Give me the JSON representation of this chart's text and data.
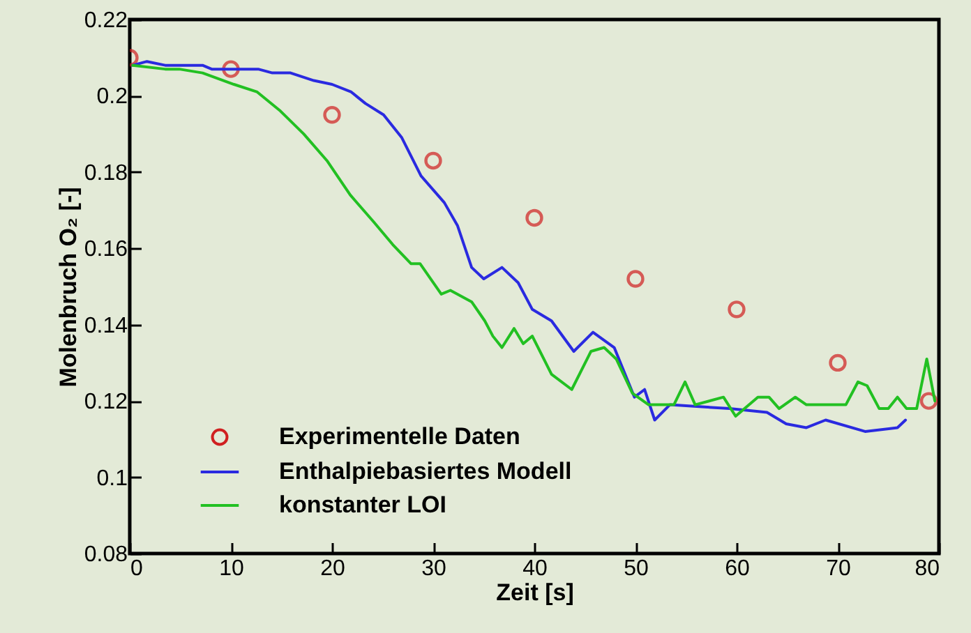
{
  "chart_data": {
    "type": "line",
    "xlabel": "Zeit [s]",
    "ylabel": "Molenbruch O₂ [-]",
    "xlim": [
      0,
      80
    ],
    "xticks": [
      0,
      10,
      20,
      30,
      40,
      50,
      60,
      70,
      80
    ],
    "ylim": [
      0.08,
      0.22
    ],
    "yticks": [
      0.08,
      0.1,
      0.12,
      0.14,
      0.16,
      0.18,
      0.2,
      0.22
    ],
    "grid": false,
    "legend": "bottom left",
    "series": [
      {
        "name": "Experimentelle Daten",
        "type": "scatter",
        "marker": "circle",
        "color": "#d02020",
        "x": [
          0,
          10,
          20,
          30,
          40,
          50,
          60,
          70,
          79
        ],
        "values": [
          0.21,
          0.207,
          0.195,
          0.183,
          0.168,
          0.152,
          0.144,
          0.13,
          0.12
        ]
      },
      {
        "name": "Enthalpiebasiertes Modell",
        "color": "#2a2ae0",
        "x": [
          0.3,
          1.7,
          3.5,
          7.2,
          8.1,
          12.7,
          14.1,
          15.9,
          18.2,
          20.0,
          21.9,
          23.3,
          25.1,
          26.9,
          28.8,
          31.1,
          32.4,
          33.8,
          35.0,
          36.8,
          38.4,
          39.8,
          41.7,
          43.9,
          45.8,
          47.9,
          49.9,
          50.9,
          51.9,
          53.4,
          59.3,
          63.0,
          64.9,
          66.9,
          68.8,
          72.7,
          75.9,
          76.7
        ],
        "values": [
          0.208,
          0.209,
          0.208,
          0.208,
          0.207,
          0.207,
          0.206,
          0.206,
          0.204,
          0.203,
          0.201,
          0.198,
          0.195,
          0.189,
          0.179,
          0.172,
          0.166,
          0.155,
          0.152,
          0.155,
          0.151,
          0.144,
          0.141,
          0.133,
          0.138,
          0.134,
          0.121,
          0.123,
          0.115,
          0.119,
          0.118,
          0.117,
          0.114,
          0.113,
          0.115,
          0.112,
          0.113,
          0.115
        ]
      },
      {
        "name": "konstanter LOI",
        "color": "#22c022",
        "x": [
          0.3,
          3.5,
          4.9,
          7.2,
          10.3,
          12.6,
          14.9,
          17.2,
          19.5,
          21.8,
          24.1,
          26.0,
          27.8,
          28.7,
          30.8,
          31.7,
          33.8,
          35.1,
          35.9,
          36.8,
          38.0,
          38.9,
          39.8,
          41.7,
          43.7,
          45.6,
          46.9,
          48.1,
          49.7,
          51.3,
          53.8,
          54.9,
          55.9,
          58.7,
          59.9,
          62.1,
          63.2,
          64.2,
          65.8,
          66.9,
          70.8,
          72.0,
          72.9,
          74.1,
          75.0,
          75.9,
          76.8,
          77.8,
          78.8,
          79.6
        ],
        "values": [
          0.208,
          0.207,
          0.207,
          0.206,
          0.203,
          0.201,
          0.196,
          0.19,
          0.183,
          0.174,
          0.167,
          0.161,
          0.156,
          0.156,
          0.148,
          0.149,
          0.146,
          0.141,
          0.137,
          0.134,
          0.139,
          0.135,
          0.137,
          0.127,
          0.123,
          0.133,
          0.134,
          0.131,
          0.122,
          0.119,
          0.119,
          0.125,
          0.119,
          0.121,
          0.116,
          0.121,
          0.121,
          0.118,
          0.121,
          0.119,
          0.119,
          0.125,
          0.124,
          0.118,
          0.118,
          0.121,
          0.118,
          0.118,
          0.131,
          0.12
        ]
      }
    ]
  }
}
